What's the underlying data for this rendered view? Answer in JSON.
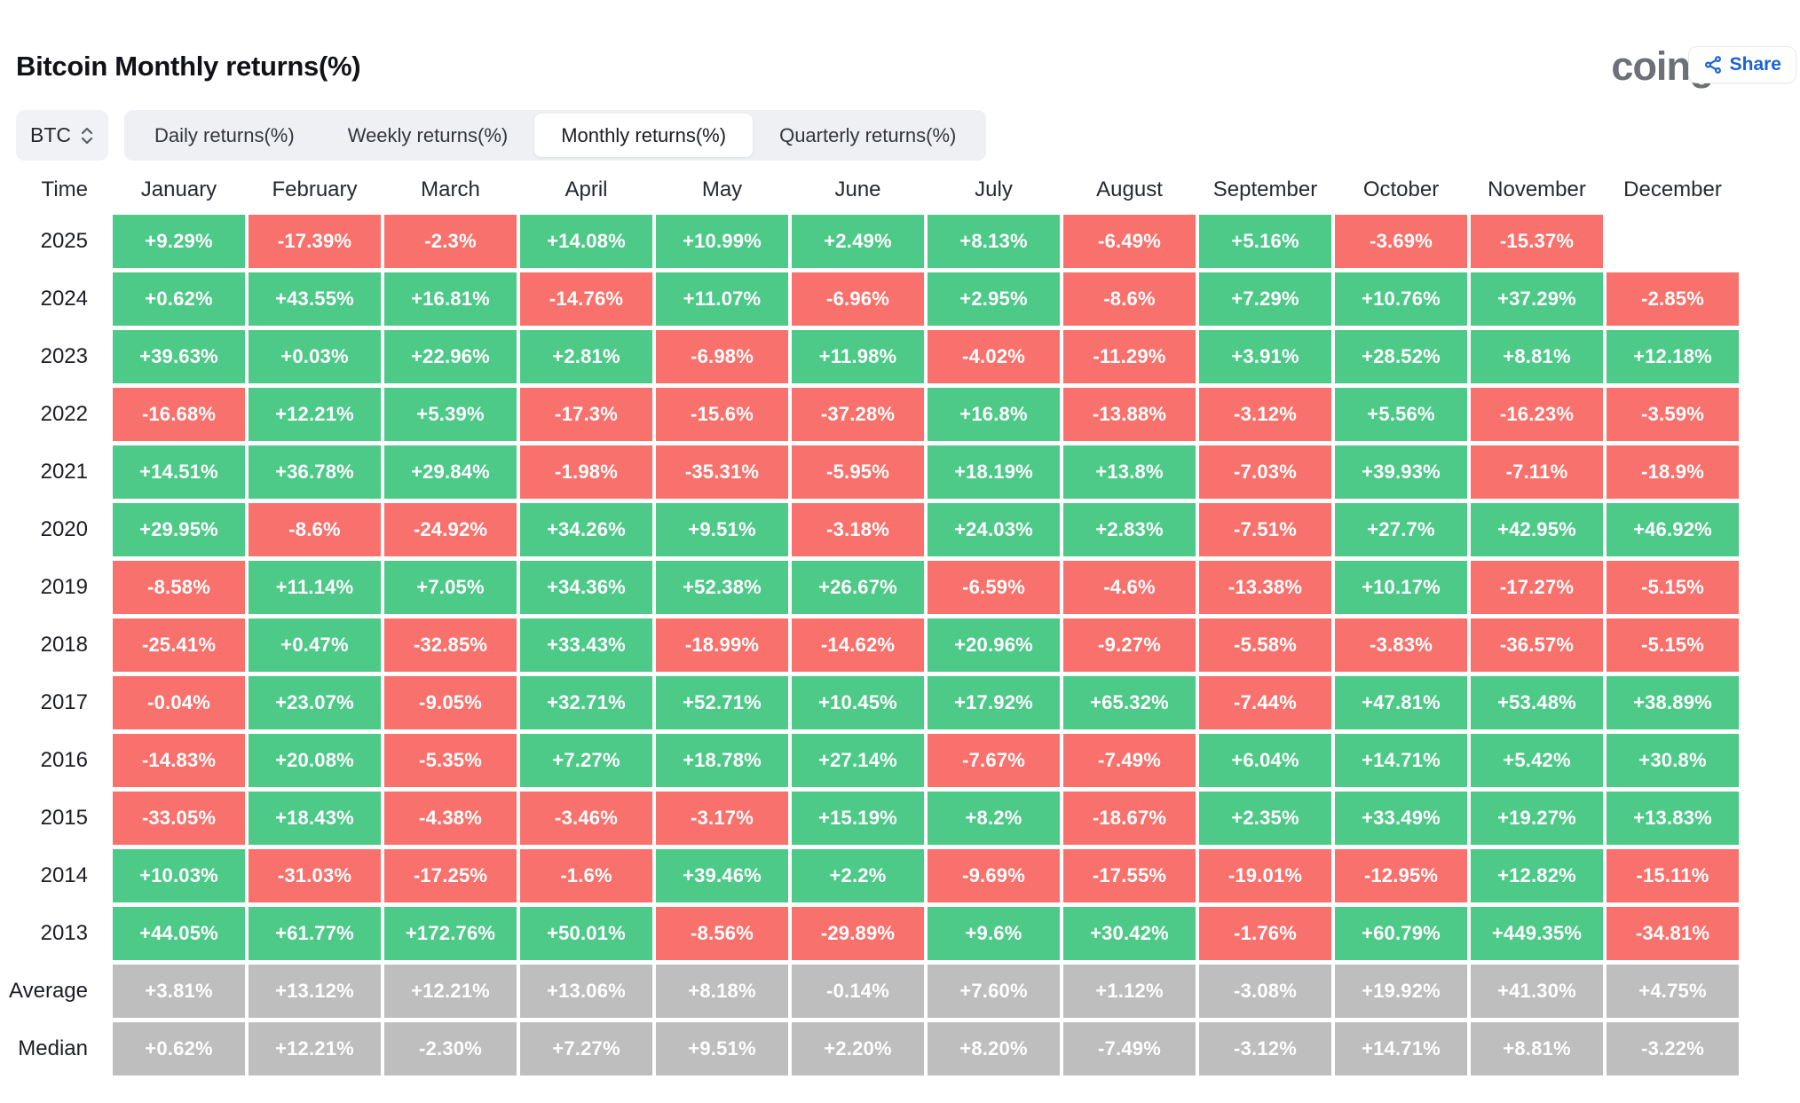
{
  "header": {
    "title": "Bitcoin Monthly returns(%)",
    "logo_text": "coinglass",
    "share_label": "Share"
  },
  "controls": {
    "symbol": "BTC",
    "tabs": [
      {
        "label": "Daily returns(%)",
        "active": false
      },
      {
        "label": "Weekly returns(%)",
        "active": false
      },
      {
        "label": "Monthly returns(%)",
        "active": true
      },
      {
        "label": "Quarterly returns(%)",
        "active": false
      }
    ]
  },
  "colors": {
    "positive_green": "#4DC988",
    "negative_red": "#F9716C",
    "summary_gray": "#BEBEBE",
    "accent_blue": "#1A63D8"
  },
  "table": {
    "time_header": "Time",
    "months": [
      "January",
      "February",
      "March",
      "April",
      "May",
      "June",
      "July",
      "August",
      "September",
      "October",
      "November",
      "December"
    ],
    "rows": [
      {
        "label": "2025",
        "type": "year",
        "cells": [
          "+9.29%",
          "-17.39%",
          "-2.3%",
          "+14.08%",
          "+10.99%",
          "+2.49%",
          "+8.13%",
          "-6.49%",
          "+5.16%",
          "-3.69%",
          "-15.37%",
          ""
        ]
      },
      {
        "label": "2024",
        "type": "year",
        "cells": [
          "+0.62%",
          "+43.55%",
          "+16.81%",
          "-14.76%",
          "+11.07%",
          "-6.96%",
          "+2.95%",
          "-8.6%",
          "+7.29%",
          "+10.76%",
          "+37.29%",
          "-2.85%"
        ]
      },
      {
        "label": "2023",
        "type": "year",
        "cells": [
          "+39.63%",
          "+0.03%",
          "+22.96%",
          "+2.81%",
          "-6.98%",
          "+11.98%",
          "-4.02%",
          "-11.29%",
          "+3.91%",
          "+28.52%",
          "+8.81%",
          "+12.18%"
        ]
      },
      {
        "label": "2022",
        "type": "year",
        "cells": [
          "-16.68%",
          "+12.21%",
          "+5.39%",
          "-17.3%",
          "-15.6%",
          "-37.28%",
          "+16.8%",
          "-13.88%",
          "-3.12%",
          "+5.56%",
          "-16.23%",
          "-3.59%"
        ]
      },
      {
        "label": "2021",
        "type": "year",
        "cells": [
          "+14.51%",
          "+36.78%",
          "+29.84%",
          "-1.98%",
          "-35.31%",
          "-5.95%",
          "+18.19%",
          "+13.8%",
          "-7.03%",
          "+39.93%",
          "-7.11%",
          "-18.9%"
        ]
      },
      {
        "label": "2020",
        "type": "year",
        "cells": [
          "+29.95%",
          "-8.6%",
          "-24.92%",
          "+34.26%",
          "+9.51%",
          "-3.18%",
          "+24.03%",
          "+2.83%",
          "-7.51%",
          "+27.7%",
          "+42.95%",
          "+46.92%"
        ]
      },
      {
        "label": "2019",
        "type": "year",
        "cells": [
          "-8.58%",
          "+11.14%",
          "+7.05%",
          "+34.36%",
          "+52.38%",
          "+26.67%",
          "-6.59%",
          "-4.6%",
          "-13.38%",
          "+10.17%",
          "-17.27%",
          "-5.15%"
        ]
      },
      {
        "label": "2018",
        "type": "year",
        "cells": [
          "-25.41%",
          "+0.47%",
          "-32.85%",
          "+33.43%",
          "-18.99%",
          "-14.62%",
          "+20.96%",
          "-9.27%",
          "-5.58%",
          "-3.83%",
          "-36.57%",
          "-5.15%"
        ]
      },
      {
        "label": "2017",
        "type": "year",
        "cells": [
          "-0.04%",
          "+23.07%",
          "-9.05%",
          "+32.71%",
          "+52.71%",
          "+10.45%",
          "+17.92%",
          "+65.32%",
          "-7.44%",
          "+47.81%",
          "+53.48%",
          "+38.89%"
        ]
      },
      {
        "label": "2016",
        "type": "year",
        "cells": [
          "-14.83%",
          "+20.08%",
          "-5.35%",
          "+7.27%",
          "+18.78%",
          "+27.14%",
          "-7.67%",
          "-7.49%",
          "+6.04%",
          "+14.71%",
          "+5.42%",
          "+30.8%"
        ]
      },
      {
        "label": "2015",
        "type": "year",
        "cells": [
          "-33.05%",
          "+18.43%",
          "-4.38%",
          "-3.46%",
          "-3.17%",
          "+15.19%",
          "+8.2%",
          "-18.67%",
          "+2.35%",
          "+33.49%",
          "+19.27%",
          "+13.83%"
        ]
      },
      {
        "label": "2014",
        "type": "year",
        "cells": [
          "+10.03%",
          "-31.03%",
          "-17.25%",
          "-1.6%",
          "+39.46%",
          "+2.2%",
          "-9.69%",
          "-17.55%",
          "-19.01%",
          "-12.95%",
          "+12.82%",
          "-15.11%"
        ]
      },
      {
        "label": "2013",
        "type": "year",
        "cells": [
          "+44.05%",
          "+61.77%",
          "+172.76%",
          "+50.01%",
          "-8.56%",
          "-29.89%",
          "+9.6%",
          "+30.42%",
          "-1.76%",
          "+60.79%",
          "+449.35%",
          "-34.81%"
        ]
      },
      {
        "label": "Average",
        "type": "summary",
        "cells": [
          "+3.81%",
          "+13.12%",
          "+12.21%",
          "+13.06%",
          "+8.18%",
          "-0.14%",
          "+7.60%",
          "+1.12%",
          "-3.08%",
          "+19.92%",
          "+41.30%",
          "+4.75%"
        ]
      },
      {
        "label": "Median",
        "type": "summary",
        "cells": [
          "+0.62%",
          "+12.21%",
          "-2.30%",
          "+7.27%",
          "+9.51%",
          "+2.20%",
          "+8.20%",
          "-7.49%",
          "-3.12%",
          "+14.71%",
          "+8.81%",
          "-3.22%"
        ]
      }
    ]
  }
}
